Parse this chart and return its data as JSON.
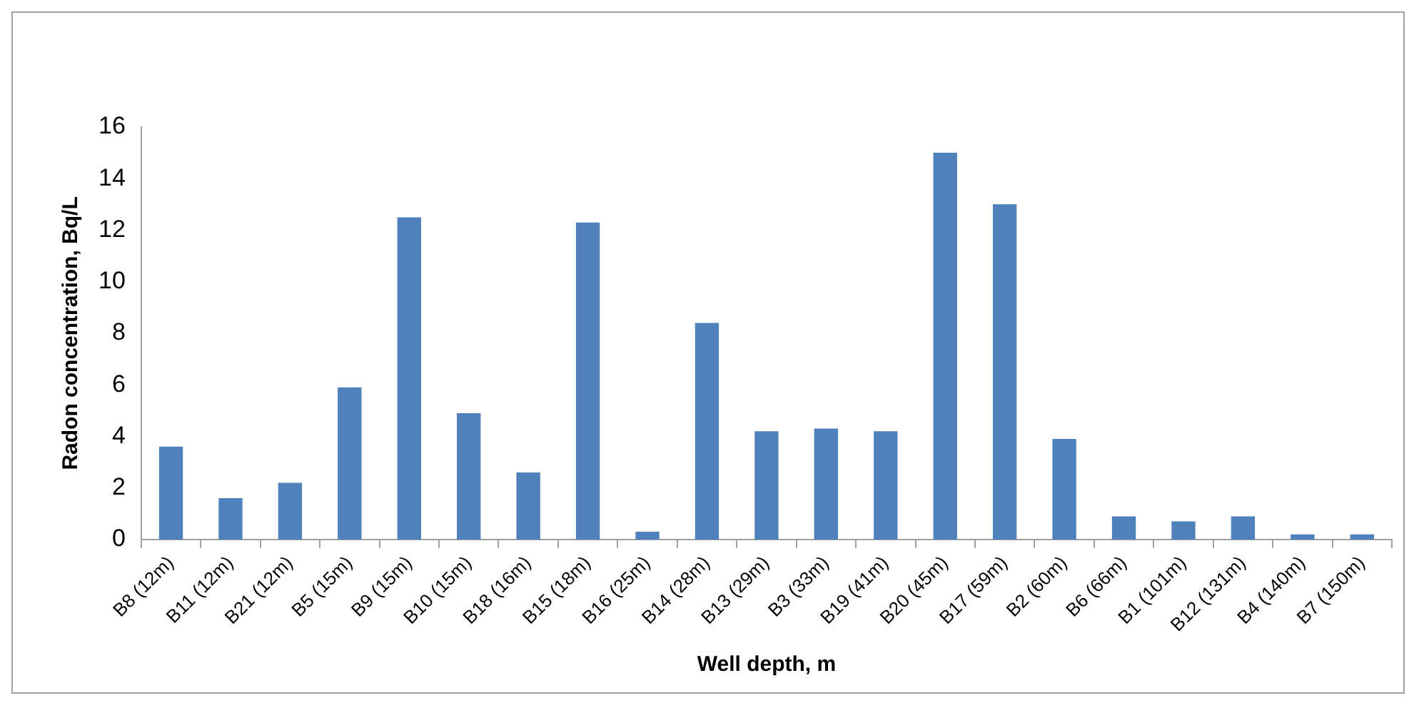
{
  "chart_data": {
    "type": "bar",
    "xlabel": "Well depth, m",
    "ylabel": "Radon concentration, Bq/L",
    "categories": [
      "B8 (12m)",
      "B11 (12m)",
      "B21 (12m)",
      "B5 (15m)",
      "B9 (15m)",
      "B10 (15m)",
      "B18 (16m)",
      "B15 (18m)",
      "B16 (25m)",
      "B14 (28m)",
      "B13 (29m)",
      "B3 (33m)",
      "B19 (41m)",
      "B20 (45m)",
      "B17 (59m)",
      "B2 (60m)",
      "B6 (66m)",
      "B1 (101m)",
      "B12 (131m)",
      "B4 (140m)",
      "B7 (150m)"
    ],
    "values": [
      3.6,
      1.6,
      2.2,
      5.9,
      12.5,
      4.9,
      2.6,
      12.3,
      0.3,
      8.4,
      4.2,
      4.3,
      4.2,
      15.0,
      13.0,
      3.9,
      0.9,
      0.7,
      0.9,
      0.2,
      0.2
    ],
    "color": "#4f81bd",
    "ylim": [
      0,
      16
    ],
    "yticks": [
      0,
      2,
      4,
      6,
      8,
      10,
      12,
      14,
      16
    ],
    "grid": false,
    "legend": false
  }
}
